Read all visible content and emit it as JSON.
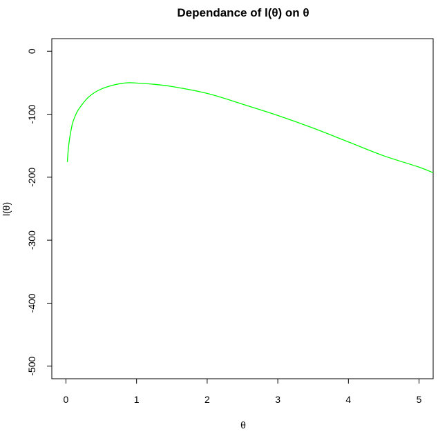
{
  "chart_data": {
    "type": "line",
    "title": "Dependance of l(θ) on θ",
    "xlabel": "θ",
    "ylabel": "l(θ)",
    "xlim": [
      -0.2,
      5.2
    ],
    "ylim": [
      -520,
      20
    ],
    "x_ticks": [
      0,
      1,
      2,
      3,
      4,
      5
    ],
    "y_ticks": [
      0,
      -100,
      -200,
      -300,
      -400,
      -500
    ],
    "x_tick_labels": [
      "0",
      "1",
      "2",
      "3",
      "4",
      "5"
    ],
    "y_tick_labels": [
      "0",
      "-100",
      "-200",
      "-300",
      "-400",
      "-500"
    ],
    "grid": false,
    "series": [
      {
        "color": "#00ff00",
        "x": [
          0.02,
          0.03,
          0.05,
          0.08,
          0.1,
          0.15,
          0.2,
          0.3,
          0.4,
          0.5,
          0.6,
          0.7,
          0.8,
          0.9,
          1.0,
          1.2,
          1.5,
          2.0,
          2.5,
          3.0,
          3.5,
          4.0,
          4.5,
          5.0,
          5.2
        ],
        "y": [
          -176,
          -160,
          -140,
          -121,
          -112,
          -98,
          -89,
          -75,
          -66,
          -60,
          -56,
          -53,
          -51,
          -50,
          -50.5,
          -52,
          -56,
          -67,
          -84,
          -102,
          -122,
          -144,
          -166,
          -184,
          -193
        ]
      }
    ]
  }
}
